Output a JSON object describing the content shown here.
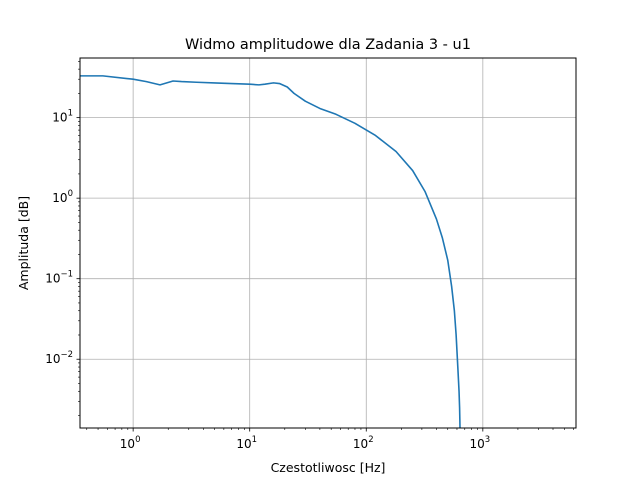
{
  "chart_data": {
    "type": "line",
    "title": "Widmo amplitudowe dla Zadania 3 - u1",
    "xlabel": "Czestotliwosc [Hz]",
    "ylabel": "Amplituda [dB]",
    "xscale": "log",
    "yscale": "log",
    "xlim": [
      0.35,
      6300
    ],
    "ylim": [
      0.0014,
      55
    ],
    "grid": true,
    "line_color": "#1f77b4",
    "x_ticks": [
      {
        "value": 1,
        "base": "10",
        "exp": "0"
      },
      {
        "value": 10,
        "base": "10",
        "exp": "1"
      },
      {
        "value": 100,
        "base": "10",
        "exp": "2"
      },
      {
        "value": 1000,
        "base": "10",
        "exp": "3"
      }
    ],
    "y_ticks": [
      {
        "value": 0.01,
        "base": "10",
        "exp": "−2"
      },
      {
        "value": 0.1,
        "base": "10",
        "exp": "−1"
      },
      {
        "value": 1,
        "base": "10",
        "exp": "0"
      },
      {
        "value": 10,
        "base": "10",
        "exp": "1"
      }
    ],
    "series": [
      {
        "x": [
          0.35,
          0.55,
          1.0,
          1.3,
          1.7,
          2.2,
          2.6,
          3.5,
          5,
          7,
          10,
          12,
          13.5,
          16,
          18,
          21,
          24,
          30,
          40,
          55,
          80,
          120,
          180,
          250,
          320,
          400,
          450,
          500,
          540,
          570,
          590,
          610,
          625,
          632,
          635,
          637
        ],
        "y": [
          33,
          33,
          30,
          28,
          25.5,
          28.5,
          28,
          27.5,
          27,
          26.5,
          26,
          25.5,
          26,
          27,
          26.5,
          24,
          20,
          16,
          13,
          11,
          8.5,
          6,
          3.8,
          2.2,
          1.2,
          0.55,
          0.32,
          0.17,
          0.08,
          0.04,
          0.02,
          0.008,
          0.004,
          0.0025,
          0.0018,
          0.0014
        ]
      }
    ]
  }
}
